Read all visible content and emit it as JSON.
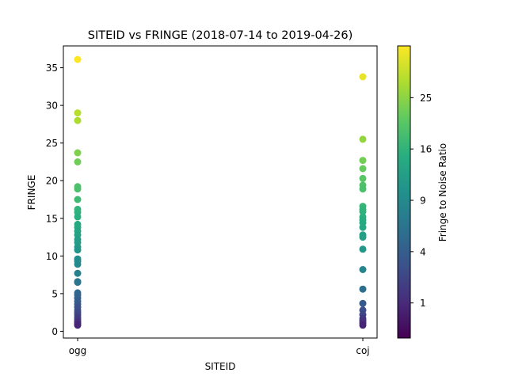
{
  "chart_data": {
    "type": "scatter",
    "title": "SITEID vs FRINGE (2018-07-14 to 2019-04-26)",
    "xlabel": "SITEID",
    "ylabel": "FRINGE",
    "categories": [
      "ogg",
      "coj"
    ],
    "ylim": [
      -0.9,
      37.9
    ],
    "yticks": [
      0,
      5,
      10,
      15,
      20,
      25,
      30,
      35
    ],
    "grid": false,
    "colorbar": {
      "label": "Fringe to Noise Ratio",
      "scale": "sqrt",
      "colormap": "viridis",
      "range": [
        0.1,
        36.1
      ],
      "ticks": [
        1,
        4,
        9,
        16,
        25
      ]
    },
    "series": [
      {
        "category": "ogg",
        "y": [
          36.1,
          29.0,
          28.0,
          23.7,
          22.5,
          19.2,
          18.9,
          17.5,
          16.2,
          15.8,
          15.2,
          14.2,
          13.8,
          13.3,
          12.8,
          12.2,
          11.8,
          11.2,
          10.8,
          9.6,
          9.3,
          8.9,
          7.7,
          6.6,
          6.5,
          5.1,
          4.8,
          4.4,
          4.0,
          3.6,
          3.2,
          2.8,
          2.5,
          2.2,
          1.9,
          1.6,
          1.3,
          1.1,
          0.9,
          0.8
        ]
      },
      {
        "category": "coj",
        "y": [
          33.8,
          25.5,
          22.7,
          21.6,
          20.3,
          19.4,
          18.9,
          16.6,
          16.2,
          15.9,
          15.2,
          14.8,
          14.4,
          13.8,
          12.8,
          12.5,
          10.9,
          8.2,
          5.6,
          3.7,
          2.8,
          2.2,
          1.7,
          1.4,
          1.1,
          0.8
        ]
      }
    ]
  }
}
